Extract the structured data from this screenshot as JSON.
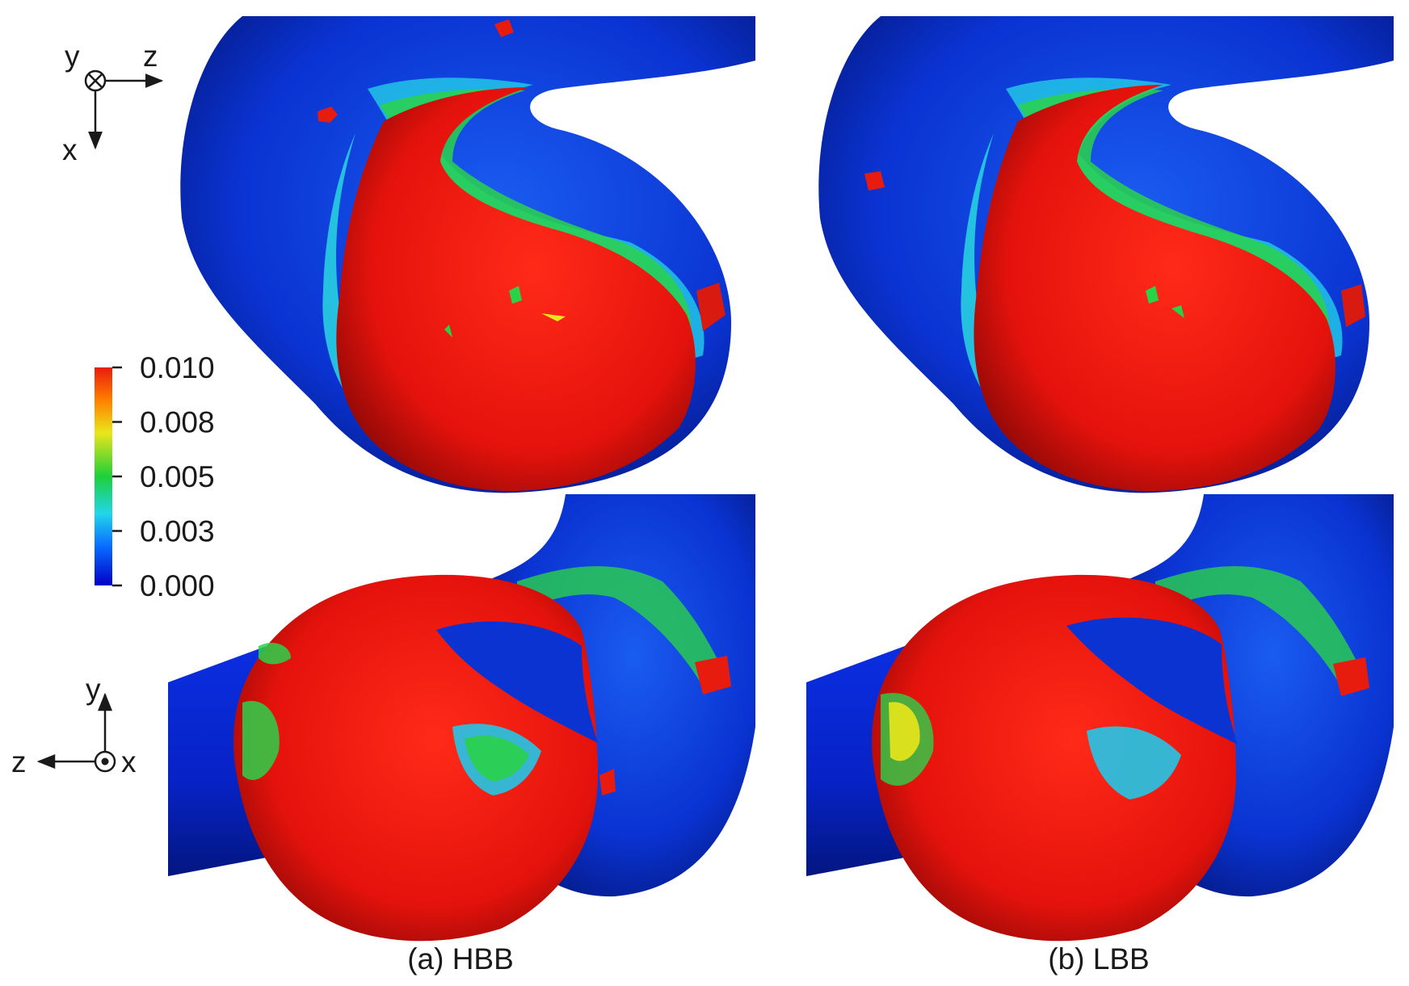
{
  "figure": {
    "panels": [
      {
        "id": "a",
        "caption": "(a) HBB"
      },
      {
        "id": "b",
        "caption": "(b) LBB"
      }
    ],
    "views": [
      "top-view",
      "side-view"
    ],
    "top_axes": {
      "into_page": "y",
      "right": "z",
      "down": "x"
    },
    "side_axes": {
      "up": "y",
      "left": "z",
      "out_of_page": "x"
    }
  },
  "colorbar": {
    "ticks": [
      "0.010",
      "0.008",
      "0.005",
      "0.003",
      "0.000"
    ],
    "min": 0.0,
    "max": 0.01,
    "colormap": [
      "#0000c8",
      "#0a6cff",
      "#22d6ea",
      "#1ecf3a",
      "#e9e61b",
      "#ff7f00",
      "#e81c0e"
    ]
  },
  "colors": {
    "surface_red": "#ee1410",
    "surface_blue": "#0a33d2",
    "vessel_blue": "#0722c4",
    "text": "#1a1a1a"
  }
}
